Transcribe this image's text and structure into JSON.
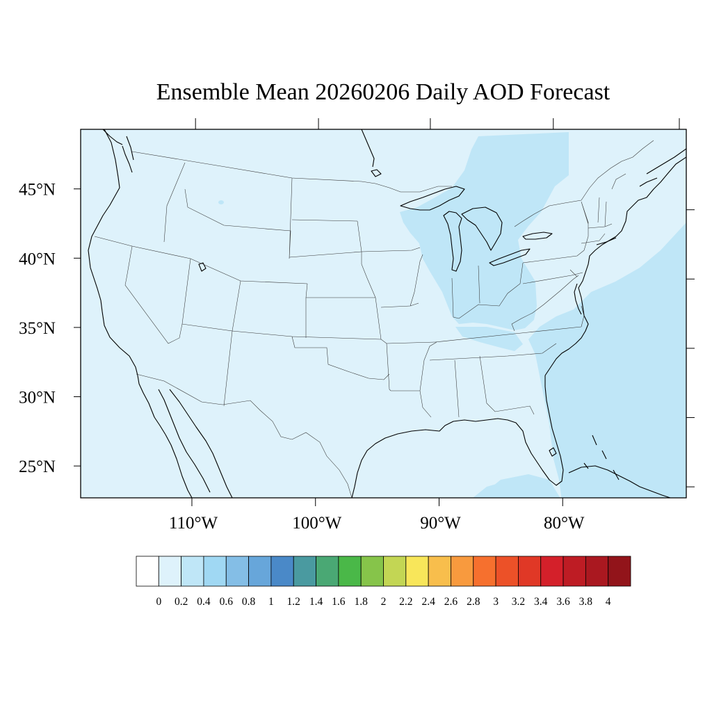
{
  "title": "Ensemble Mean 20260206 Daily AOD Forecast",
  "map": {
    "projection": "equirectangular",
    "lon_range": [
      -119,
      -70
    ],
    "lat_range": [
      22.7,
      49.3
    ],
    "lat_labels": [
      {
        "lat": 45,
        "label": "45°N"
      },
      {
        "lat": 40,
        "label": "40°N"
      },
      {
        "lat": 35,
        "label": "35°N"
      },
      {
        "lat": 30,
        "label": "30°N"
      },
      {
        "lat": 25,
        "label": "25°N"
      }
    ],
    "lon_labels": [
      {
        "lon": -110,
        "label": "110°W"
      },
      {
        "lon": -100,
        "label": "100°W"
      },
      {
        "lon": -90,
        "label": "90°W"
      },
      {
        "lon": -80,
        "label": "80°W"
      }
    ],
    "background_level_color": "#def2fb",
    "elevated_level_color": "#bfe6f7"
  },
  "colorbar": {
    "colors": [
      "#ffffff",
      "#def2fb",
      "#bfe6f7",
      "#a0d8f3",
      "#84bee6",
      "#67a6da",
      "#4a89c8",
      "#4a9aa0",
      "#4aa874",
      "#4ab848",
      "#86c44a",
      "#c3d654",
      "#f8e65a",
      "#f8be4c",
      "#f89a3e",
      "#f6702e",
      "#ec5128",
      "#e03826",
      "#d4202a",
      "#be1c24",
      "#aa1820",
      "#92141a"
    ],
    "labels": [
      "0",
      "0.2",
      "0.4",
      "0.6",
      "0.8",
      "1",
      "1.2",
      "1.4",
      "1.6",
      "1.8",
      "2",
      "2.2",
      "2.4",
      "2.6",
      "2.8",
      "3",
      "3.2",
      "3.4",
      "3.6",
      "3.8",
      "4"
    ]
  }
}
